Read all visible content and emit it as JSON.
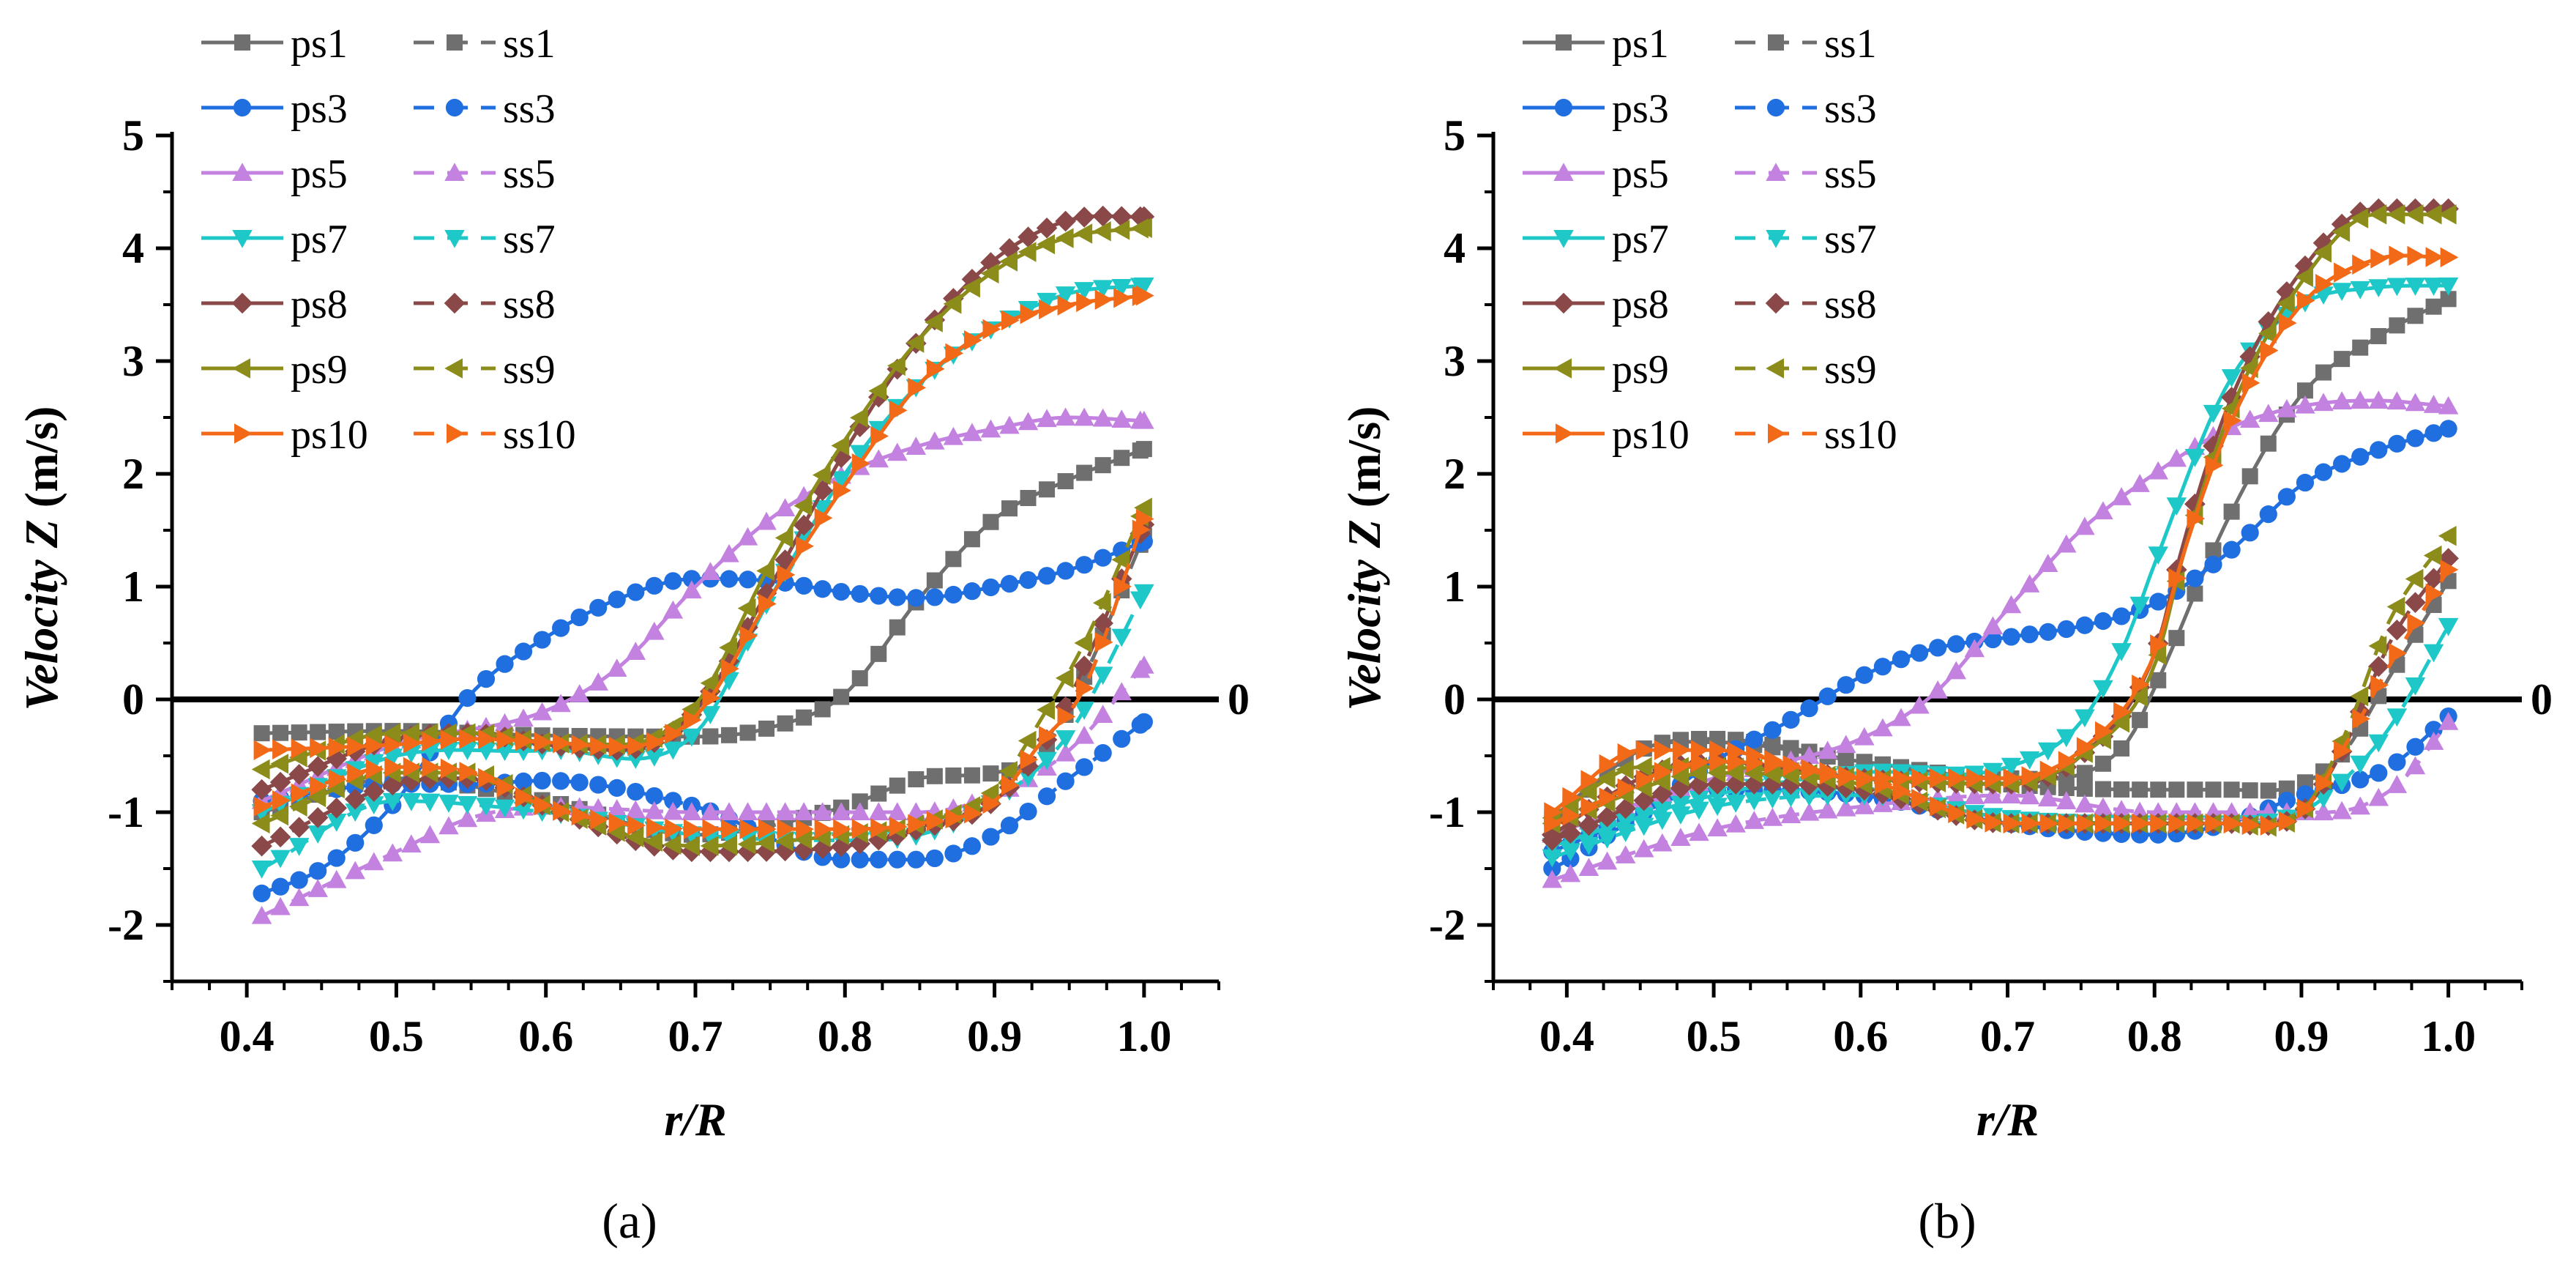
{
  "chart_data": [
    {
      "type": "line",
      "panel_label": "(a)",
      "xlabel": "r/R",
      "ylabel_prefix": "Velocity Z",
      "ylabel_unit": "(m/s)",
      "xlim": [
        0.35,
        1.05
      ],
      "ylim": [
        -2.5,
        5
      ],
      "xticks": [
        0.4,
        0.5,
        0.6,
        0.7,
        0.8,
        0.9,
        1.0
      ],
      "xtick_labels": [
        "0.4",
        "0.5",
        "0.6",
        "0.7",
        "0.8",
        "0.9",
        "1.0"
      ],
      "yticks": [
        -2,
        -1,
        0,
        1,
        2,
        3,
        4,
        5
      ],
      "ytick_labels": [
        "-2",
        "-1",
        "0",
        "1",
        "2",
        "3",
        "4",
        "5"
      ],
      "zero_line_label": "0",
      "legend_position": "top-left",
      "series": [
        {
          "name": "ps1",
          "color": "#6f6f6f",
          "marker": "square",
          "dash": "solid",
          "x": [
            0.41,
            0.5,
            0.6,
            0.7,
            0.75,
            0.8,
            0.85,
            0.9,
            0.95,
            1.0
          ],
          "y": [
            -0.3,
            -0.28,
            -0.32,
            -0.33,
            -0.25,
            0.05,
            0.9,
            1.6,
            1.95,
            2.22
          ]
        },
        {
          "name": "ss1",
          "color": "#6f6f6f",
          "marker": "square",
          "dash": "dashed",
          "x": [
            0.41,
            0.5,
            0.6,
            0.7,
            0.8,
            0.85,
            0.9,
            0.93,
            0.96,
            1.0
          ],
          "y": [
            -1.0,
            -0.7,
            -0.9,
            -1.2,
            -0.95,
            -0.7,
            -0.65,
            -0.5,
            0.2,
            1.45
          ]
        },
        {
          "name": "ps3",
          "color": "#1f6fe0",
          "marker": "circle",
          "dash": "solid",
          "x": [
            0.41,
            0.45,
            0.5,
            0.55,
            0.6,
            0.65,
            0.7,
            0.75,
            0.8,
            0.85,
            0.9,
            0.95,
            1.0
          ],
          "y": [
            -1.72,
            -1.5,
            -0.9,
            0.05,
            0.55,
            0.9,
            1.07,
            1.05,
            0.95,
            0.9,
            1.0,
            1.15,
            1.4
          ]
        },
        {
          "name": "ss3",
          "color": "#1f6fe0",
          "marker": "circle",
          "dash": "dashed",
          "x": [
            0.41,
            0.5,
            0.55,
            0.6,
            0.7,
            0.8,
            0.85,
            0.9,
            0.95,
            1.0
          ],
          "y": [
            -0.9,
            -0.75,
            -0.75,
            -0.72,
            -0.95,
            -1.42,
            -1.42,
            -1.2,
            -0.7,
            -0.2
          ]
        },
        {
          "name": "ps5",
          "color": "#c381e0",
          "marker": "triangle-up",
          "dash": "solid",
          "x": [
            0.41,
            0.5,
            0.6,
            0.65,
            0.7,
            0.75,
            0.8,
            0.85,
            0.9,
            0.95,
            1.0
          ],
          "y": [
            -0.9,
            -0.4,
            -0.1,
            0.3,
            1.0,
            1.6,
            2.0,
            2.25,
            2.4,
            2.5,
            2.47
          ]
        },
        {
          "name": "ss5",
          "color": "#c381e0",
          "marker": "triangle-up",
          "dash": "dashed",
          "x": [
            0.41,
            0.5,
            0.55,
            0.6,
            0.7,
            0.8,
            0.85,
            0.9,
            0.95,
            1.0
          ],
          "y": [
            -1.92,
            -1.35,
            -1.05,
            -0.95,
            -1.0,
            -1.0,
            -1.0,
            -0.85,
            -0.45,
            0.3
          ]
        },
        {
          "name": "ps7",
          "color": "#1ec8c8",
          "marker": "triangle-down",
          "dash": "solid",
          "x": [
            0.41,
            0.5,
            0.6,
            0.7,
            0.75,
            0.8,
            0.85,
            0.9,
            0.95,
            1.0
          ],
          "y": [
            -1.0,
            -0.5,
            -0.45,
            -0.3,
            0.9,
            2.0,
            2.8,
            3.3,
            3.6,
            3.67
          ]
        },
        {
          "name": "ss7",
          "color": "#1ec8c8",
          "marker": "triangle-down",
          "dash": "dashed",
          "x": [
            0.41,
            0.5,
            0.6,
            0.7,
            0.8,
            0.85,
            0.9,
            0.95,
            1.0
          ],
          "y": [
            -1.5,
            -0.9,
            -1.0,
            -1.2,
            -1.25,
            -1.2,
            -0.9,
            -0.3,
            0.95
          ]
        },
        {
          "name": "ps8",
          "color": "#8b4848",
          "marker": "diamond",
          "dash": "solid",
          "x": [
            0.41,
            0.5,
            0.55,
            0.6,
            0.65,
            0.7,
            0.75,
            0.8,
            0.85,
            0.9,
            0.95,
            1.0
          ],
          "y": [
            -0.8,
            -0.35,
            -0.3,
            -0.4,
            -0.45,
            -0.1,
            1.0,
            2.2,
            3.2,
            3.9,
            4.25,
            4.28
          ]
        },
        {
          "name": "ss8",
          "color": "#8b4848",
          "marker": "diamond",
          "dash": "dashed",
          "x": [
            0.41,
            0.5,
            0.55,
            0.6,
            0.7,
            0.8,
            0.85,
            0.9,
            0.94,
            0.97,
            1.0
          ],
          "y": [
            -1.3,
            -0.75,
            -0.7,
            -0.95,
            -1.35,
            -1.3,
            -1.15,
            -0.9,
            -0.25,
            0.6,
            1.55
          ]
        },
        {
          "name": "ps9",
          "color": "#8c8c1a",
          "marker": "triangle-left",
          "dash": "solid",
          "x": [
            0.41,
            0.5,
            0.55,
            0.6,
            0.65,
            0.7,
            0.75,
            0.8,
            0.85,
            0.9,
            0.95,
            1.0
          ],
          "y": [
            -0.62,
            -0.3,
            -0.3,
            -0.38,
            -0.4,
            -0.05,
            1.2,
            2.3,
            3.2,
            3.8,
            4.1,
            4.18
          ]
        },
        {
          "name": "ss9",
          "color": "#8c8c1a",
          "marker": "triangle-left",
          "dash": "dashed",
          "x": [
            0.41,
            0.5,
            0.55,
            0.6,
            0.7,
            0.8,
            0.85,
            0.9,
            0.93,
            0.96,
            1.0
          ],
          "y": [
            -1.1,
            -0.65,
            -0.65,
            -0.95,
            -1.3,
            -1.2,
            -1.1,
            -0.8,
            -0.2,
            0.5,
            1.7
          ]
        },
        {
          "name": "ps10",
          "color": "#f26a18",
          "marker": "triangle-right",
          "dash": "solid",
          "x": [
            0.41,
            0.5,
            0.55,
            0.6,
            0.65,
            0.7,
            0.75,
            0.8,
            0.85,
            0.9,
            0.95,
            1.0
          ],
          "y": [
            -0.45,
            -0.4,
            -0.35,
            -0.38,
            -0.42,
            -0.15,
            0.9,
            1.9,
            2.8,
            3.3,
            3.5,
            3.58
          ]
        },
        {
          "name": "ss10",
          "color": "#f26a18",
          "marker": "triangle-right",
          "dash": "dashed",
          "x": [
            0.41,
            0.5,
            0.55,
            0.6,
            0.7,
            0.8,
            0.85,
            0.9,
            0.93,
            0.96,
            1.0
          ],
          "y": [
            -0.95,
            -0.6,
            -0.65,
            -0.95,
            -1.15,
            -1.15,
            -1.1,
            -0.9,
            -0.4,
            0.1,
            1.6
          ]
        }
      ]
    },
    {
      "type": "line",
      "panel_label": "(b)",
      "xlabel": "r/R",
      "ylabel_prefix": "Velocity Z",
      "ylabel_unit": "(m/s)",
      "xlim": [
        0.35,
        1.05
      ],
      "ylim": [
        -2.5,
        5
      ],
      "xticks": [
        0.4,
        0.5,
        0.6,
        0.7,
        0.8,
        0.9,
        1.0
      ],
      "xtick_labels": [
        "0.4",
        "0.5",
        "0.6",
        "0.7",
        "0.8",
        "0.9",
        "1.0"
      ],
      "yticks": [
        -2,
        -1,
        0,
        1,
        2,
        3,
        4,
        5
      ],
      "ytick_labels": [
        "-2",
        "-1",
        "0",
        "1",
        "2",
        "3",
        "4",
        "5"
      ],
      "zero_line_label": "0",
      "legend_position": "top-left",
      "series": [
        {
          "name": "ps1",
          "color": "#6f6f6f",
          "marker": "square",
          "dash": "solid",
          "x": [
            0.39,
            0.45,
            0.5,
            0.6,
            0.7,
            0.78,
            0.8,
            0.85,
            0.9,
            0.95,
            1.0
          ],
          "y": [
            -1.1,
            -0.45,
            -0.38,
            -0.55,
            -0.7,
            -0.4,
            0.1,
            1.6,
            2.7,
            3.2,
            3.55
          ]
        },
        {
          "name": "ss1",
          "color": "#6f6f6f",
          "marker": "square",
          "dash": "dashed",
          "x": [
            0.39,
            0.45,
            0.5,
            0.6,
            0.7,
            0.8,
            0.85,
            0.9,
            0.93,
            0.96,
            1.0
          ],
          "y": [
            -1.05,
            -0.45,
            -0.35,
            -0.55,
            -0.75,
            -0.8,
            -0.8,
            -0.75,
            -0.45,
            0.2,
            1.05
          ]
        },
        {
          "name": "ps3",
          "color": "#1f6fe0",
          "marker": "circle",
          "dash": "solid",
          "x": [
            0.39,
            0.45,
            0.5,
            0.55,
            0.6,
            0.65,
            0.7,
            0.75,
            0.8,
            0.85,
            0.9,
            0.95,
            1.0
          ],
          "y": [
            -1.35,
            -1.0,
            -0.55,
            -0.2,
            0.2,
            0.45,
            0.55,
            0.65,
            0.85,
            1.3,
            1.9,
            2.2,
            2.4
          ]
        },
        {
          "name": "ss3",
          "color": "#1f6fe0",
          "marker": "circle",
          "dash": "dashed",
          "x": [
            0.39,
            0.5,
            0.6,
            0.7,
            0.8,
            0.85,
            0.9,
            0.93,
            0.96,
            1.0
          ],
          "y": [
            -1.5,
            -0.8,
            -0.85,
            -1.1,
            -1.2,
            -1.1,
            -0.85,
            -0.75,
            -0.6,
            -0.15
          ]
        },
        {
          "name": "ps5",
          "color": "#c381e0",
          "marker": "triangle-up",
          "dash": "solid",
          "x": [
            0.39,
            0.5,
            0.55,
            0.6,
            0.65,
            0.7,
            0.75,
            0.8,
            0.85,
            0.9,
            0.95,
            1.0
          ],
          "y": [
            -1.2,
            -0.7,
            -0.55,
            -0.35,
            0.05,
            0.8,
            1.5,
            2.0,
            2.4,
            2.6,
            2.65,
            2.6
          ]
        },
        {
          "name": "ss5",
          "color": "#c381e0",
          "marker": "triangle-up",
          "dash": "dashed",
          "x": [
            0.39,
            0.5,
            0.6,
            0.7,
            0.8,
            0.9,
            0.94,
            0.97,
            1.0
          ],
          "y": [
            -1.6,
            -1.15,
            -0.95,
            -0.85,
            -1.0,
            -1.0,
            -0.95,
            -0.7,
            -0.2
          ]
        },
        {
          "name": "ps7",
          "color": "#1ec8c8",
          "marker": "triangle-down",
          "dash": "solid",
          "x": [
            0.39,
            0.5,
            0.6,
            0.7,
            0.75,
            0.78,
            0.8,
            0.85,
            0.9,
            0.95,
            1.0
          ],
          "y": [
            -1.3,
            -0.85,
            -0.65,
            -0.6,
            -0.2,
            0.5,
            1.2,
            2.8,
            3.5,
            3.65,
            3.67
          ]
        },
        {
          "name": "ss7",
          "color": "#1ec8c8",
          "marker": "triangle-down",
          "dash": "dashed",
          "x": [
            0.39,
            0.5,
            0.6,
            0.7,
            0.8,
            0.85,
            0.9,
            0.93,
            0.96,
            1.0
          ],
          "y": [
            -1.4,
            -0.95,
            -0.85,
            -1.05,
            -1.1,
            -1.1,
            -1.0,
            -0.7,
            -0.25,
            0.65
          ]
        },
        {
          "name": "ps8",
          "color": "#8b4848",
          "marker": "diamond",
          "dash": "solid",
          "x": [
            0.39,
            0.45,
            0.5,
            0.6,
            0.7,
            0.75,
            0.8,
            0.82,
            0.85,
            0.9,
            0.95,
            1.0
          ],
          "y": [
            -1.2,
            -0.7,
            -0.55,
            -0.7,
            -0.75,
            -0.5,
            0.4,
            1.4,
            2.6,
            3.8,
            4.35,
            4.35
          ]
        },
        {
          "name": "ss8",
          "color": "#8b4848",
          "marker": "diamond",
          "dash": "dashed",
          "x": [
            0.39,
            0.5,
            0.6,
            0.7,
            0.8,
            0.85,
            0.9,
            0.93,
            0.96,
            1.0
          ],
          "y": [
            -1.25,
            -0.75,
            -0.8,
            -1.1,
            -1.1,
            -1.1,
            -1.0,
            -0.4,
            0.5,
            1.25
          ]
        },
        {
          "name": "ps9",
          "color": "#8c8c1a",
          "marker": "triangle-left",
          "dash": "solid",
          "x": [
            0.39,
            0.45,
            0.5,
            0.6,
            0.7,
            0.75,
            0.8,
            0.82,
            0.85,
            0.9,
            0.95,
            1.0
          ],
          "y": [
            -1.05,
            -0.6,
            -0.6,
            -0.7,
            -0.75,
            -0.5,
            0.3,
            1.3,
            2.5,
            3.7,
            4.3,
            4.3
          ]
        },
        {
          "name": "ss9",
          "color": "#8c8c1a",
          "marker": "triangle-left",
          "dash": "dashed",
          "x": [
            0.39,
            0.5,
            0.6,
            0.7,
            0.8,
            0.85,
            0.9,
            0.93,
            0.96,
            1.0
          ],
          "y": [
            -1.1,
            -0.65,
            -0.75,
            -1.1,
            -1.1,
            -1.1,
            -1.0,
            -0.3,
            0.7,
            1.45
          ]
        },
        {
          "name": "ps10",
          "color": "#f26a18",
          "marker": "triangle-right",
          "dash": "solid",
          "x": [
            0.39,
            0.45,
            0.5,
            0.6,
            0.7,
            0.75,
            0.8,
            0.82,
            0.85,
            0.9,
            0.95,
            1.0
          ],
          "y": [
            -1.0,
            -0.45,
            -0.45,
            -0.7,
            -0.7,
            -0.45,
            0.4,
            1.3,
            2.4,
            3.5,
            3.9,
            3.92
          ]
        },
        {
          "name": "ss10",
          "color": "#f26a18",
          "marker": "triangle-right",
          "dash": "dashed",
          "x": [
            0.39,
            0.5,
            0.6,
            0.7,
            0.8,
            0.85,
            0.9,
            0.93,
            0.96,
            1.0
          ],
          "y": [
            -1.1,
            -0.55,
            -0.7,
            -1.1,
            -1.1,
            -1.1,
            -1.0,
            -0.4,
            0.3,
            1.15
          ]
        }
      ]
    }
  ]
}
